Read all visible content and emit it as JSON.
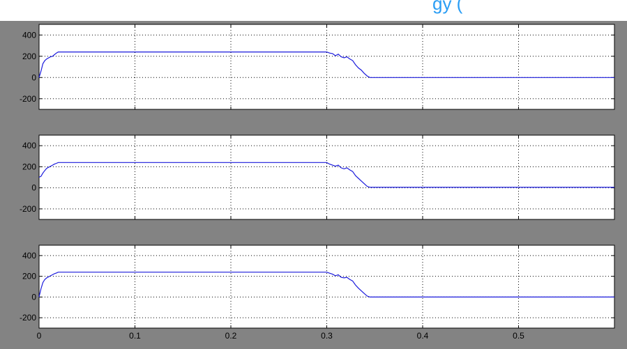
{
  "title_fragment": "gy (",
  "colors": {
    "window_background": "#838383",
    "plot_background": "#ffffff",
    "signal": "#1a1adc",
    "grid": "#000000",
    "title_fragment": "#2a9df4"
  },
  "chart_data": [
    {
      "type": "line",
      "xlim": [
        0,
        0.6
      ],
      "ylim": [
        -300,
        500
      ],
      "grid": true,
      "xticks": [
        0,
        0.1,
        0.2,
        0.3,
        0.4,
        0.5
      ],
      "yticks": [
        -200,
        0,
        200,
        400
      ],
      "xtick_labels_shown": false,
      "series": [
        {
          "x": [
            0,
            0.002,
            0.004,
            0.006,
            0.008,
            0.01,
            0.012,
            0.014,
            0.016,
            0.018,
            0.02,
            0.3,
            0.303,
            0.306,
            0.309,
            0.312,
            0.315,
            0.318,
            0.321,
            0.324,
            0.327,
            0.33,
            0.333,
            0.336,
            0.339,
            0.342,
            0.345,
            0.6
          ],
          "y": [
            0,
            60,
            130,
            160,
            175,
            185,
            195,
            200,
            215,
            230,
            240,
            240,
            230,
            225,
            205,
            220,
            195,
            185,
            195,
            175,
            160,
            120,
            90,
            70,
            40,
            15,
            0,
            0
          ]
        }
      ]
    },
    {
      "type": "line",
      "xlim": [
        0,
        0.6
      ],
      "ylim": [
        -300,
        500
      ],
      "grid": true,
      "xticks": [
        0,
        0.1,
        0.2,
        0.3,
        0.4,
        0.5
      ],
      "yticks": [
        -200,
        0,
        200,
        400
      ],
      "xtick_labels_shown": false,
      "series": [
        {
          "x": [
            0,
            0.002,
            0.004,
            0.006,
            0.008,
            0.01,
            0.012,
            0.014,
            0.016,
            0.018,
            0.02,
            0.3,
            0.303,
            0.306,
            0.309,
            0.312,
            0.315,
            0.318,
            0.321,
            0.324,
            0.327,
            0.33,
            0.333,
            0.336,
            0.339,
            0.342,
            0.345,
            0.6
          ],
          "y": [
            100,
            110,
            140,
            165,
            185,
            195,
            205,
            215,
            225,
            232,
            240,
            240,
            225,
            215,
            205,
            215,
            190,
            180,
            190,
            170,
            155,
            115,
            90,
            65,
            40,
            15,
            5,
            5
          ]
        }
      ]
    },
    {
      "type": "line",
      "xlim": [
        0,
        0.6
      ],
      "ylim": [
        -300,
        500
      ],
      "grid": true,
      "xticks": [
        0,
        0.1,
        0.2,
        0.3,
        0.4,
        0.5
      ],
      "yticks": [
        -200,
        0,
        200,
        400
      ],
      "xtick_labels_shown": true,
      "series": [
        {
          "x": [
            0,
            0.002,
            0.004,
            0.006,
            0.008,
            0.01,
            0.012,
            0.014,
            0.016,
            0.018,
            0.02,
            0.3,
            0.303,
            0.306,
            0.309,
            0.312,
            0.315,
            0.318,
            0.321,
            0.324,
            0.327,
            0.33,
            0.333,
            0.336,
            0.339,
            0.342,
            0.345,
            0.6
          ],
          "y": [
            0,
            80,
            140,
            170,
            185,
            195,
            205,
            215,
            225,
            232,
            240,
            240,
            230,
            220,
            205,
            215,
            190,
            185,
            190,
            170,
            155,
            115,
            85,
            60,
            35,
            10,
            0,
            0
          ]
        }
      ]
    }
  ]
}
